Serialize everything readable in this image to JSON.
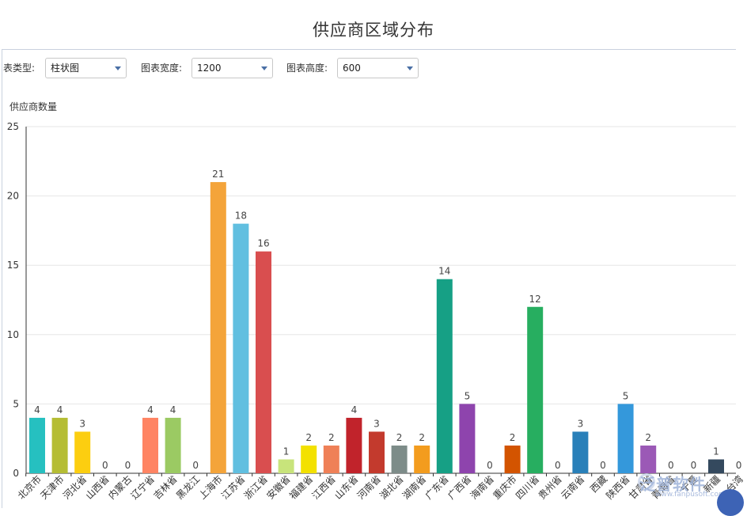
{
  "title": "供应商区域分布",
  "controls": {
    "chart_type_label": "表类型:",
    "chart_type_value": "柱状图",
    "width_label": "图表宽度:",
    "width_value": "1200",
    "height_label": "图表高度:",
    "height_value": "600"
  },
  "watermark": {
    "text": "泛普软件",
    "sub": "www.fanpusoft.com"
  },
  "chart_data": {
    "type": "bar",
    "ylabel": "供应商数量",
    "ylim": [
      0,
      25
    ],
    "yticks": [
      0,
      5,
      10,
      15,
      20,
      25
    ],
    "categories": [
      "北京市",
      "天津市",
      "河北省",
      "山西省",
      "内蒙古",
      "辽宁省",
      "吉林省",
      "黑龙江",
      "上海市",
      "江苏省",
      "浙江省",
      "安徽省",
      "福建省",
      "江西省",
      "山东省",
      "河南省",
      "湖北省",
      "湖南省",
      "广东省",
      "广西省",
      "海南省",
      "重庆市",
      "四川省",
      "贵州省",
      "云南省",
      "西藏",
      "陕西省",
      "甘肃省",
      "青海省",
      "宁夏",
      "新疆",
      "台湾"
    ],
    "values": [
      4,
      4,
      3,
      0,
      0,
      4,
      4,
      0,
      21,
      18,
      16,
      1,
      2,
      2,
      4,
      3,
      2,
      2,
      14,
      5,
      0,
      2,
      12,
      0,
      3,
      0,
      5,
      2,
      0,
      0,
      1,
      0
    ],
    "colors": [
      "#26c0c0",
      "#b5bd34",
      "#fcce10",
      "#a0a0a0",
      "#a0a0a0",
      "#ff8463",
      "#9bca63",
      "#a0a0a0",
      "#f4a43a",
      "#61bfe0",
      "#d94e4f",
      "#c8e47b",
      "#f3e100",
      "#ef8057",
      "#c1232b",
      "#c33a2d",
      "#7d8c89",
      "#f39c1e",
      "#16a085",
      "#8e44ad",
      "#a0a0a0",
      "#d35400",
      "#27ae60",
      "#a0a0a0",
      "#2980b9",
      "#a0a0a0",
      "#3498db",
      "#9b59b6",
      "#a0a0a0",
      "#a0a0a0",
      "#34495e",
      "#a0a0a0"
    ]
  }
}
